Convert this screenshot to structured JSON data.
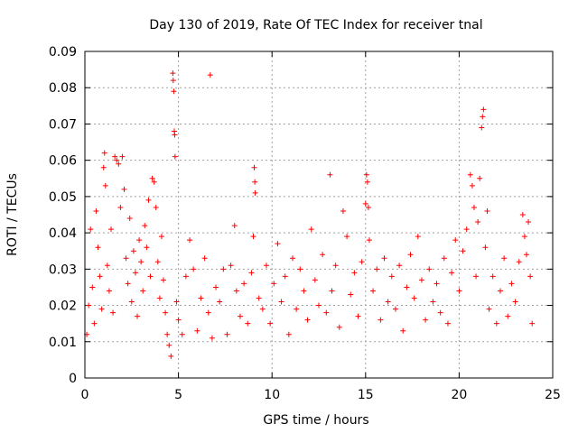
{
  "chart_data": {
    "type": "scatter",
    "title": "Day 130 of 2019, Rate Of TEC Index for receiver tnal",
    "xlabel": "GPS time / hours",
    "ylabel": "ROTI / TECUs",
    "xlim": [
      0,
      25
    ],
    "ylim": [
      0,
      0.09
    ],
    "x_ticks": [
      0,
      5,
      10,
      15,
      20,
      25
    ],
    "x_tick_labels": [
      "0",
      "5",
      "10",
      "15",
      "20",
      "25"
    ],
    "y_ticks": [
      0,
      0.01,
      0.02,
      0.03,
      0.04,
      0.05,
      0.06,
      0.07,
      0.08,
      0.09
    ],
    "y_tick_labels": [
      "0",
      "0.01",
      "0.02",
      "0.03",
      "0.04",
      "0.05",
      "0.06",
      "0.07",
      "0.08",
      "0.09"
    ],
    "grid": true,
    "marker": "+",
    "marker_color": "#ff0000",
    "series": [
      {
        "name": "ROTI",
        "points": [
          [
            0.1,
            0.012
          ],
          [
            0.2,
            0.02
          ],
          [
            0.3,
            0.041
          ],
          [
            0.4,
            0.025
          ],
          [
            0.5,
            0.015
          ],
          [
            0.6,
            0.046
          ],
          [
            0.7,
            0.036
          ],
          [
            0.8,
            0.028
          ],
          [
            0.9,
            0.019
          ],
          [
            1.0,
            0.058
          ],
          [
            1.05,
            0.062
          ],
          [
            1.1,
            0.053
          ],
          [
            1.2,
            0.031
          ],
          [
            1.3,
            0.024
          ],
          [
            1.4,
            0.041
          ],
          [
            1.5,
            0.018
          ],
          [
            1.6,
            0.061
          ],
          [
            1.7,
            0.06
          ],
          [
            1.8,
            0.059
          ],
          [
            1.9,
            0.047
          ],
          [
            2.0,
            0.061
          ],
          [
            2.1,
            0.052
          ],
          [
            2.2,
            0.033
          ],
          [
            2.3,
            0.026
          ],
          [
            2.4,
            0.044
          ],
          [
            2.5,
            0.021
          ],
          [
            2.6,
            0.035
          ],
          [
            2.7,
            0.029
          ],
          [
            2.8,
            0.017
          ],
          [
            2.9,
            0.038
          ],
          [
            3.0,
            0.032
          ],
          [
            3.1,
            0.024
          ],
          [
            3.2,
            0.042
          ],
          [
            3.3,
            0.036
          ],
          [
            3.4,
            0.049
          ],
          [
            3.5,
            0.028
          ],
          [
            3.6,
            0.055
          ],
          [
            3.7,
            0.054
          ],
          [
            3.8,
            0.047
          ],
          [
            3.9,
            0.032
          ],
          [
            4.0,
            0.022
          ],
          [
            4.1,
            0.039
          ],
          [
            4.2,
            0.027
          ],
          [
            4.3,
            0.018
          ],
          [
            4.4,
            0.012
          ],
          [
            4.5,
            0.009
          ],
          [
            4.6,
            0.006
          ],
          [
            4.7,
            0.084
          ],
          [
            4.72,
            0.082
          ],
          [
            4.75,
            0.079
          ],
          [
            4.78,
            0.068
          ],
          [
            4.8,
            0.067
          ],
          [
            4.82,
            0.061
          ],
          [
            4.9,
            0.021
          ],
          [
            5.0,
            0.016
          ],
          [
            5.2,
            0.012
          ],
          [
            5.4,
            0.028
          ],
          [
            5.6,
            0.038
          ],
          [
            5.8,
            0.03
          ],
          [
            6.0,
            0.013
          ],
          [
            6.2,
            0.022
          ],
          [
            6.4,
            0.033
          ],
          [
            6.6,
            0.018
          ],
          [
            6.7,
            0.0835
          ],
          [
            6.8,
            0.011
          ],
          [
            7.0,
            0.025
          ],
          [
            7.2,
            0.021
          ],
          [
            7.4,
            0.03
          ],
          [
            7.6,
            0.012
          ],
          [
            7.8,
            0.031
          ],
          [
            8.0,
            0.042
          ],
          [
            8.1,
            0.024
          ],
          [
            8.3,
            0.017
          ],
          [
            8.5,
            0.026
          ],
          [
            8.7,
            0.015
          ],
          [
            8.9,
            0.029
          ],
          [
            9.0,
            0.039
          ],
          [
            9.05,
            0.058
          ],
          [
            9.08,
            0.054
          ],
          [
            9.1,
            0.051
          ],
          [
            9.3,
            0.022
          ],
          [
            9.5,
            0.019
          ],
          [
            9.7,
            0.031
          ],
          [
            9.9,
            0.015
          ],
          [
            10.1,
            0.026
          ],
          [
            10.3,
            0.037
          ],
          [
            10.5,
            0.021
          ],
          [
            10.7,
            0.028
          ],
          [
            10.9,
            0.012
          ],
          [
            11.1,
            0.033
          ],
          [
            11.3,
            0.019
          ],
          [
            11.5,
            0.03
          ],
          [
            11.7,
            0.024
          ],
          [
            11.9,
            0.016
          ],
          [
            12.1,
            0.041
          ],
          [
            12.3,
            0.027
          ],
          [
            12.5,
            0.02
          ],
          [
            12.7,
            0.034
          ],
          [
            12.9,
            0.018
          ],
          [
            13.1,
            0.056
          ],
          [
            13.2,
            0.024
          ],
          [
            13.4,
            0.031
          ],
          [
            13.6,
            0.014
          ],
          [
            13.8,
            0.046
          ],
          [
            14.0,
            0.039
          ],
          [
            14.2,
            0.023
          ],
          [
            14.4,
            0.029
          ],
          [
            14.6,
            0.017
          ],
          [
            14.8,
            0.032
          ],
          [
            15.0,
            0.048
          ],
          [
            15.05,
            0.056
          ],
          [
            15.1,
            0.054
          ],
          [
            15.15,
            0.047
          ],
          [
            15.2,
            0.038
          ],
          [
            15.4,
            0.024
          ],
          [
            15.6,
            0.03
          ],
          [
            15.8,
            0.016
          ],
          [
            16.0,
            0.033
          ],
          [
            16.2,
            0.021
          ],
          [
            16.4,
            0.028
          ],
          [
            16.6,
            0.019
          ],
          [
            16.8,
            0.031
          ],
          [
            17.0,
            0.013
          ],
          [
            17.2,
            0.025
          ],
          [
            17.4,
            0.034
          ],
          [
            17.6,
            0.022
          ],
          [
            17.8,
            0.039
          ],
          [
            18.0,
            0.027
          ],
          [
            18.2,
            0.016
          ],
          [
            18.4,
            0.03
          ],
          [
            18.6,
            0.021
          ],
          [
            18.8,
            0.026
          ],
          [
            19.0,
            0.018
          ],
          [
            19.2,
            0.033
          ],
          [
            19.4,
            0.015
          ],
          [
            19.6,
            0.029
          ],
          [
            19.8,
            0.038
          ],
          [
            20.0,
            0.024
          ],
          [
            20.2,
            0.035
          ],
          [
            20.4,
            0.041
          ],
          [
            20.6,
            0.056
          ],
          [
            20.7,
            0.053
          ],
          [
            20.8,
            0.047
          ],
          [
            20.9,
            0.028
          ],
          [
            21.0,
            0.043
          ],
          [
            21.1,
            0.055
          ],
          [
            21.2,
            0.069
          ],
          [
            21.25,
            0.072
          ],
          [
            21.3,
            0.074
          ],
          [
            21.4,
            0.036
          ],
          [
            21.5,
            0.046
          ],
          [
            21.6,
            0.019
          ],
          [
            21.8,
            0.028
          ],
          [
            22.0,
            0.015
          ],
          [
            22.2,
            0.024
          ],
          [
            22.4,
            0.033
          ],
          [
            22.6,
            0.017
          ],
          [
            22.8,
            0.026
          ],
          [
            23.0,
            0.021
          ],
          [
            23.2,
            0.032
          ],
          [
            23.4,
            0.045
          ],
          [
            23.5,
            0.039
          ],
          [
            23.6,
            0.034
          ],
          [
            23.7,
            0.043
          ],
          [
            23.8,
            0.028
          ],
          [
            23.9,
            0.015
          ]
        ]
      }
    ]
  }
}
